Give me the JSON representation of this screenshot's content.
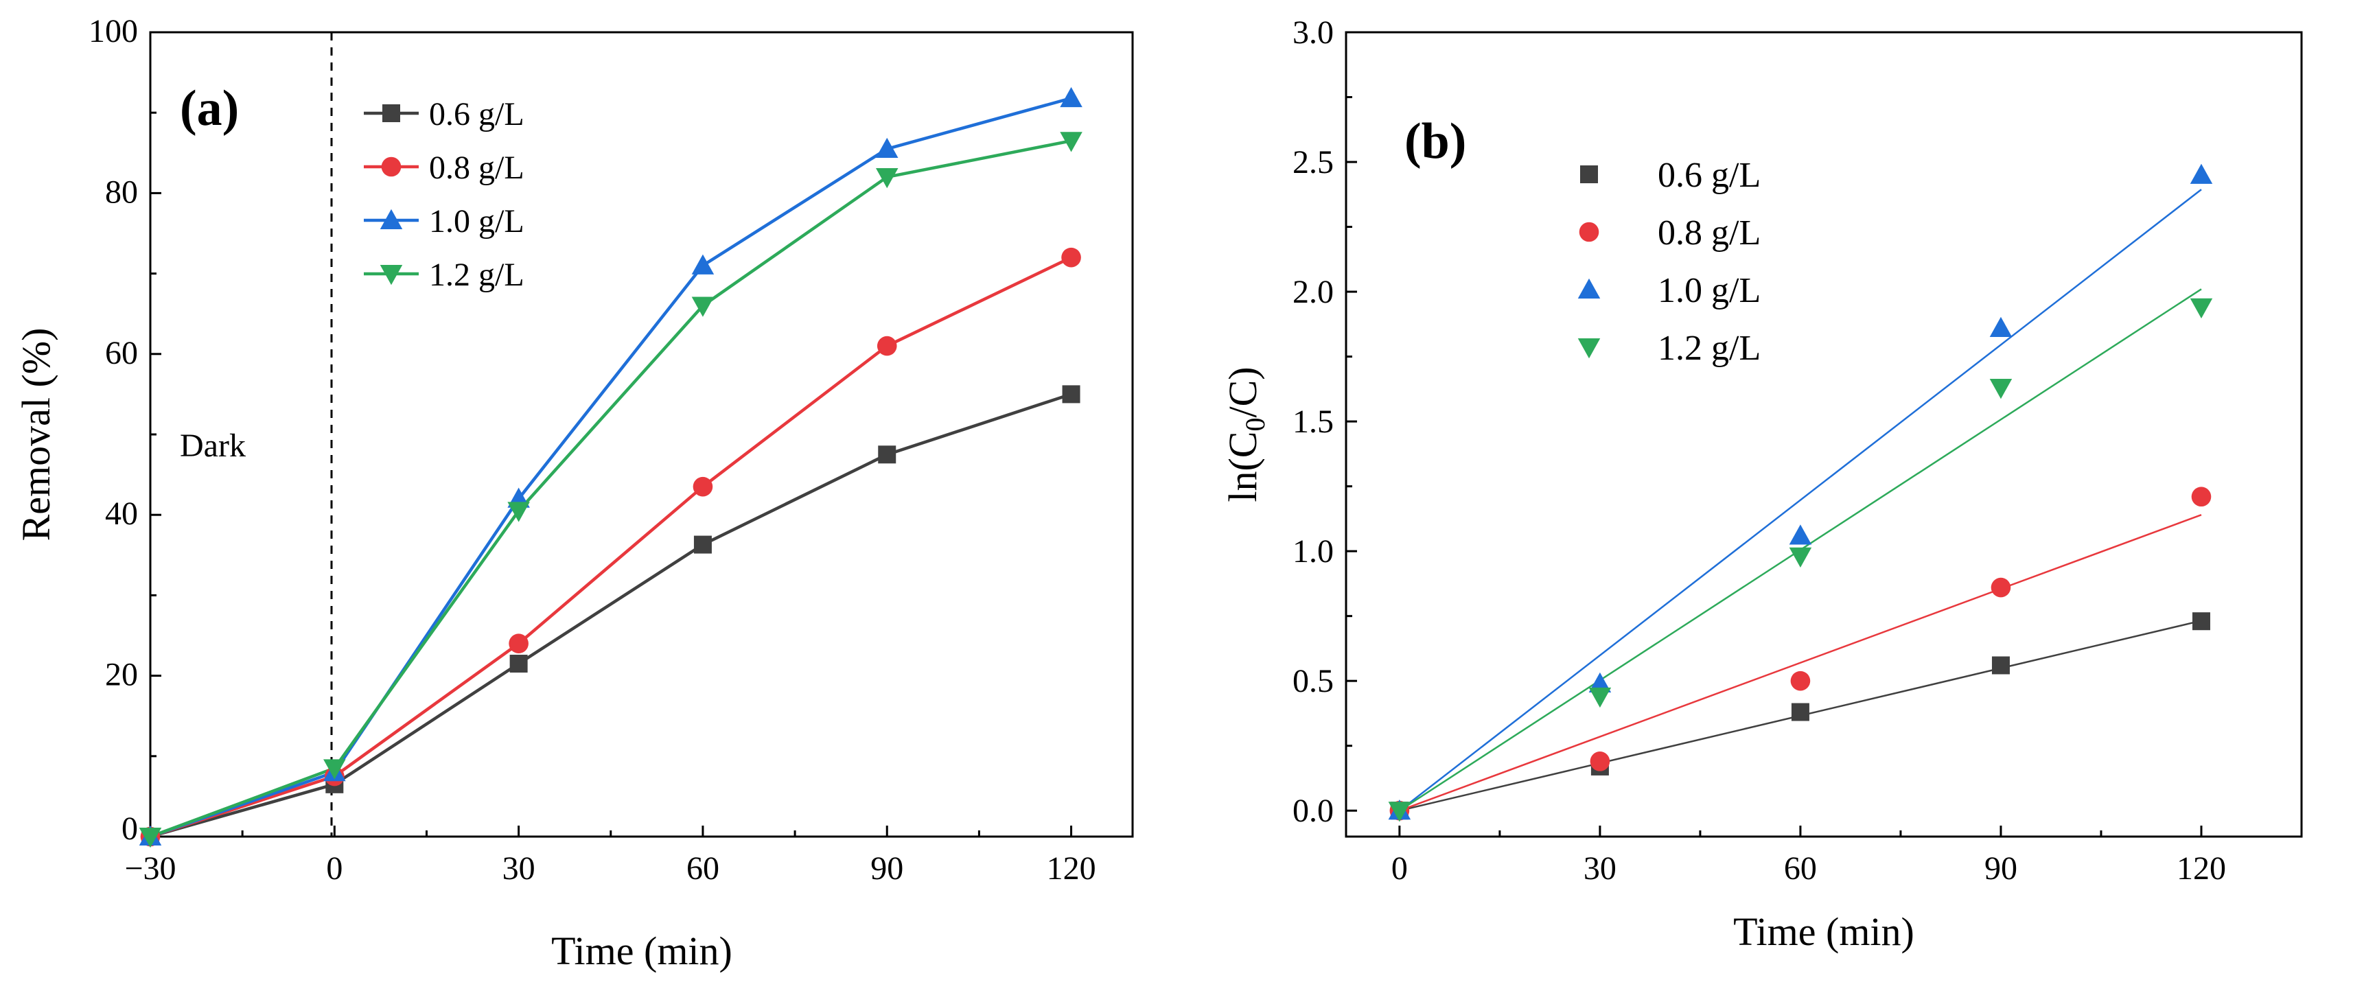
{
  "chart_data": [
    {
      "type": "line",
      "panel_label": "(a)",
      "xlabel": "Time (min)",
      "ylabel": "Removal (%)",
      "xlim": [
        -30,
        130
      ],
      "ylim": [
        0,
        100
      ],
      "xticks": [
        "−30",
        "0",
        "30",
        "60",
        "90",
        "120"
      ],
      "yticks": [
        "0",
        "20",
        "40",
        "60",
        "80",
        "100"
      ],
      "x": [
        -30,
        0,
        30,
        60,
        90,
        120
      ],
      "annotation": "Dark",
      "dark_divider_x": 0,
      "legend_position": "top-left",
      "series": [
        {
          "name": "0.6 g/L",
          "color": "#404040",
          "marker": "square",
          "values": [
            0,
            6.5,
            21.5,
            36.3,
            47.5,
            55.0
          ]
        },
        {
          "name": "0.8 g/L",
          "color": "#e8383d",
          "marker": "circle",
          "values": [
            0,
            7.5,
            24.0,
            43.5,
            61.0,
            72.0
          ]
        },
        {
          "name": "1.0 g/L",
          "color": "#1f6fd8",
          "marker": "triangle-up",
          "values": [
            0,
            8.0,
            42.0,
            71.0,
            85.5,
            91.8
          ]
        },
        {
          "name": "1.2 g/L",
          "color": "#2daa5a",
          "marker": "triangle-down",
          "values": [
            0,
            8.5,
            40.5,
            66.0,
            82.0,
            86.5
          ]
        }
      ]
    },
    {
      "type": "scatter",
      "panel_label": "(b)",
      "xlabel": "Time (min)",
      "ylabel_main": "ln(C",
      "ylabel_sub": "0",
      "ylabel_tail": "/C)",
      "xlim": [
        -8,
        135
      ],
      "ylim": [
        -0.1,
        3.0
      ],
      "xticks": [
        "0",
        "30",
        "60",
        "90",
        "120"
      ],
      "yticks": [
        "0.0",
        "0.5",
        "1.0",
        "1.5",
        "2.0",
        "2.5",
        "3.0"
      ],
      "x": [
        0,
        30,
        60,
        90,
        120
      ],
      "legend_position": "top-left",
      "fit_lines": true,
      "series": [
        {
          "name": "0.6 g/L",
          "color": "#404040",
          "marker": "square",
          "values": [
            0,
            0.17,
            0.38,
            0.56,
            0.73
          ],
          "slope": 0.0061
        },
        {
          "name": "0.8 g/L",
          "color": "#e8383d",
          "marker": "circle",
          "values": [
            0,
            0.19,
            0.5,
            0.86,
            1.21
          ],
          "slope": 0.0095
        },
        {
          "name": "1.0 g/L",
          "color": "#1f6fd8",
          "marker": "triangle-up",
          "values": [
            0,
            0.49,
            1.06,
            1.86,
            2.45
          ],
          "slope": 0.01995
        },
        {
          "name": "1.2 g/L",
          "color": "#2daa5a",
          "marker": "triangle-down",
          "values": [
            0,
            0.44,
            0.98,
            1.63,
            1.94
          ],
          "slope": 0.01675
        }
      ]
    }
  ]
}
